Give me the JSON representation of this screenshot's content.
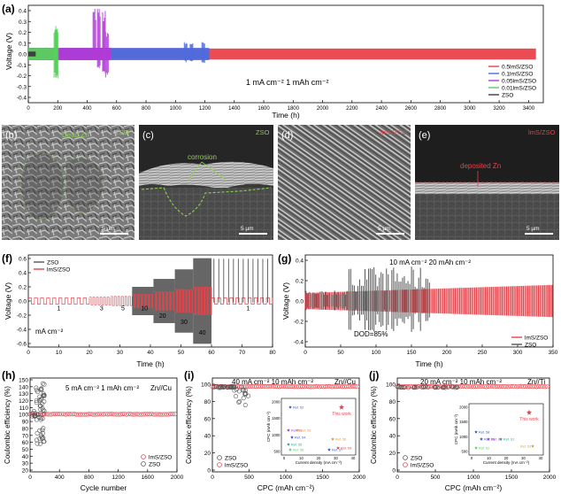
{
  "panels": {
    "a": {
      "letter": "(a)",
      "ylabel": "Voltage (V)",
      "xlabel": "Time (h)",
      "note": "1 mA cm⁻²  1 mAh cm⁻²",
      "yticks": [
        "0.4",
        "0.3",
        "0.2",
        "0.1",
        "0.0",
        "-0.1",
        "-0.2",
        "-0.3",
        "-0.4"
      ],
      "xticks": [
        "0",
        "200",
        "400",
        "600",
        "800",
        "1000",
        "1200",
        "1400",
        "1600",
        "1800",
        "2000",
        "2200",
        "2400",
        "2600",
        "2800",
        "3000",
        "3200",
        "3400"
      ],
      "legend": [
        {
          "label": "0.5lmS/ZSO",
          "color": "#e8424a"
        },
        {
          "label": "0.1lmS/ZSO",
          "color": "#4d6be0"
        },
        {
          "label": "0.05lmS/ZSO",
          "color": "#b23ad6"
        },
        {
          "label": "0.01lmS/ZSO",
          "color": "#57d15b"
        },
        {
          "label": "ZSO",
          "color": "#3a3a3a"
        }
      ]
    },
    "b": {
      "letter": "(b)",
      "label1": "Dead Zn",
      "label2": "ZSO",
      "scale": "5 µm"
    },
    "c": {
      "letter": "(c)",
      "label1": "corrosion",
      "label2": "ZSO",
      "scale": "5 µm"
    },
    "d": {
      "letter": "(d)",
      "label2": "lmS/ZSO",
      "scale": "5 µm"
    },
    "e": {
      "letter": "(e)",
      "label1": "deposited Zn",
      "label2": "lmS/ZSO",
      "scale": "5 µm"
    },
    "f": {
      "letter": "(f)",
      "ylabel": "Voltage (V)",
      "xlabel": "Time (h)",
      "unit": "mA cm⁻²",
      "yticks": [
        "0.6",
        "0.4",
        "0.2",
        "0.0",
        "-0.2",
        "-0.4",
        "-0.6"
      ],
      "xticks": [
        "0",
        "10",
        "20",
        "30",
        "40",
        "50",
        "60",
        "70",
        "80"
      ],
      "rates": [
        "1",
        "3",
        "5",
        "10",
        "20",
        "30",
        "40",
        "1"
      ],
      "legend": [
        {
          "label": "ZSO",
          "color": "#555555"
        },
        {
          "label": "lmS/ZSO",
          "color": "#e8424a"
        }
      ]
    },
    "g": {
      "letter": "(g)",
      "ylabel": "Voltage (V)",
      "xlabel": "Time (h)",
      "note": "10 mA cm⁻² 20 mAh cm⁻²",
      "dod": "DOD=85%",
      "yticks": [
        "0.4",
        "0.2",
        "0.0",
        "-0.2",
        "-0.4"
      ],
      "xticks": [
        "0",
        "50",
        "100",
        "150",
        "200",
        "250",
        "300",
        "350"
      ],
      "legend": [
        {
          "label": "lmS/ZSO",
          "color": "#e8424a"
        },
        {
          "label": "ZSO",
          "color": "#555555"
        }
      ]
    },
    "h": {
      "letter": "(h)",
      "ylabel": "Coulombic efficiency (%)",
      "xlabel": "Cycle number",
      "note": "5 mA cm⁻²  1 mAh cm⁻²",
      "cell": "Zn//Cu",
      "yticks": [
        "150",
        "140",
        "130",
        "120",
        "110",
        "100",
        "90",
        "80",
        "70",
        "60",
        "50",
        "40",
        "30",
        "20"
      ],
      "xticks": [
        "0",
        "400",
        "800",
        "1200",
        "1600",
        "2000"
      ],
      "legend": [
        {
          "label": "lmS/ZSO",
          "color": "#e8424a"
        },
        {
          "label": "ZSO",
          "color": "#555555"
        }
      ]
    },
    "i": {
      "letter": "(i)",
      "ylabel": "Coulombic efficiency (%)",
      "xlabel": "CPC (mAh cm⁻²)",
      "note": "40 mA cm⁻²  10 mAh cm⁻²",
      "cell": "Zn//Cu",
      "yticks": [
        "100",
        "80",
        "60",
        "40",
        "20",
        "0"
      ],
      "xticks": [
        "0",
        "500",
        "1000",
        "1500",
        "2000"
      ],
      "legend": [
        {
          "label": "ZSO",
          "color": "#555555"
        },
        {
          "label": "lmS/ZSO",
          "color": "#e8424a"
        }
      ],
      "inset": {
        "ylabel": "CPC (mAh cm⁻²)",
        "xlabel": "Current density (mA cm⁻²)",
        "yticks": [
          "2000",
          "1500",
          "1000",
          "500"
        ],
        "xticks": [
          "0",
          "10",
          "20",
          "30",
          "40"
        ],
        "thiswork": "This work",
        "refs": [
          "Ref. 52",
          "Ref. 51",
          "Ref. 53",
          "Ref. 54",
          "Ref. 55",
          "Ref. 56",
          "Ref. 57",
          "Ref. 58",
          "Ref. 59"
        ]
      }
    },
    "j": {
      "letter": "(j)",
      "ylabel": "Coulombic efficiency (%)",
      "xlabel": "CPC (mAh cm⁻²)",
      "note": "20 mA cm⁻²  10 mAh cm⁻²",
      "cell": "Zn//Ti",
      "yticks": [
        "100",
        "80",
        "60",
        "40",
        "20",
        "0"
      ],
      "xticks": [
        "0",
        "500",
        "1000",
        "1500",
        "2000"
      ],
      "legend": [
        {
          "label": "ZSO",
          "color": "#555555"
        },
        {
          "label": "lmS/ZSO",
          "color": "#e8424a"
        }
      ],
      "inset": {
        "ylabel": "CPC (mAh cm⁻²)",
        "xlabel": "Current density (mA cm⁻²)",
        "yticks": [
          "2000",
          "1500",
          "1000",
          "500"
        ],
        "xticks": [
          "0",
          "10",
          "20",
          "30",
          "40"
        ],
        "thiswork": "This work",
        "refs": [
          "Ref. 58",
          "Ref. 59",
          "Ref. 60",
          "Ref. 61",
          "Ref. 62",
          "Ref. 63"
        ]
      }
    }
  },
  "chart_data": [
    {
      "type": "line",
      "panel": "a",
      "xlabel": "Time (h)",
      "ylabel": "Voltage (V)",
      "xlim": [
        0,
        3500
      ],
      "ylim": [
        -0.4,
        0.4
      ],
      "series": [
        {
          "name": "ZSO",
          "x_range": [
            0,
            50
          ],
          "amplitude": 0.02
        },
        {
          "name": "0.01lmS/ZSO",
          "x_range": [
            0,
            190
          ],
          "amplitude": 0.05
        },
        {
          "name": "0.05lmS/ZSO",
          "x_range": [
            0,
            560
          ],
          "amplitude": 0.05
        },
        {
          "name": "0.1lmS/ZSO",
          "x_range": [
            0,
            1230
          ],
          "amplitude": 0.05
        },
        {
          "name": "0.5lmS/ZSO",
          "x_range": [
            0,
            3450
          ],
          "amplitude": 0.045
        }
      ]
    },
    {
      "type": "line",
      "panel": "f",
      "xlabel": "Time (h)",
      "ylabel": "Voltage (V)",
      "xlim": [
        0,
        80
      ],
      "ylim": [
        -0.6,
        0.6
      ],
      "segments": [
        {
          "rate": 1,
          "x": [
            0,
            20
          ]
        },
        {
          "rate": 3,
          "x": [
            20,
            27
          ]
        },
        {
          "rate": 5,
          "x": [
            27,
            34
          ]
        },
        {
          "rate": 10,
          "x": [
            34,
            41
          ]
        },
        {
          "rate": 20,
          "x": [
            41,
            48
          ]
        },
        {
          "rate": 30,
          "x": [
            48,
            54
          ]
        },
        {
          "rate": 40,
          "x": [
            54,
            60
          ]
        },
        {
          "rate": 1,
          "x": [
            60,
            80
          ]
        }
      ]
    },
    {
      "type": "line",
      "panel": "g",
      "xlabel": "Time (h)",
      "ylabel": "Voltage (V)",
      "xlim": [
        0,
        360
      ],
      "ylim": [
        -0.4,
        0.4
      ]
    },
    {
      "type": "scatter",
      "panel": "h",
      "xlabel": "Cycle number",
      "ylabel": "Coulombic efficiency (%)",
      "xlim": [
        0,
        2000
      ],
      "ylim": [
        20,
        150
      ],
      "series": [
        {
          "name": "lmS/ZSO",
          "x_range": [
            0,
            2000
          ],
          "y": 99.6
        },
        {
          "name": "ZSO",
          "x_range": [
            0,
            200
          ],
          "y_range": [
            25,
            145
          ]
        }
      ]
    },
    {
      "type": "scatter",
      "panel": "i",
      "xlabel": "CPC (mAh cm⁻²)",
      "ylabel": "Coulombic efficiency (%)",
      "xlim": [
        0,
        2000
      ],
      "ylim": [
        0,
        110
      ],
      "series": [
        {
          "name": "lmS/ZSO",
          "x_range": [
            0,
            2000
          ],
          "y": 99.5
        },
        {
          "name": "ZSO",
          "x_range": [
            0,
            500
          ],
          "y_range": [
            70,
            102
          ]
        }
      ]
    },
    {
      "type": "scatter",
      "panel": "j",
      "xlabel": "CPC (mAh cm⁻²)",
      "ylabel": "Coulombic efficiency (%)",
      "xlim": [
        0,
        2000
      ],
      "ylim": [
        0,
        110
      ],
      "series": [
        {
          "name": "lmS/ZSO",
          "x_range": [
            0,
            2000
          ],
          "y": 99.7
        },
        {
          "name": "ZSO",
          "x_range": [
            0,
            800
          ],
          "y": 99.0
        }
      ]
    }
  ]
}
